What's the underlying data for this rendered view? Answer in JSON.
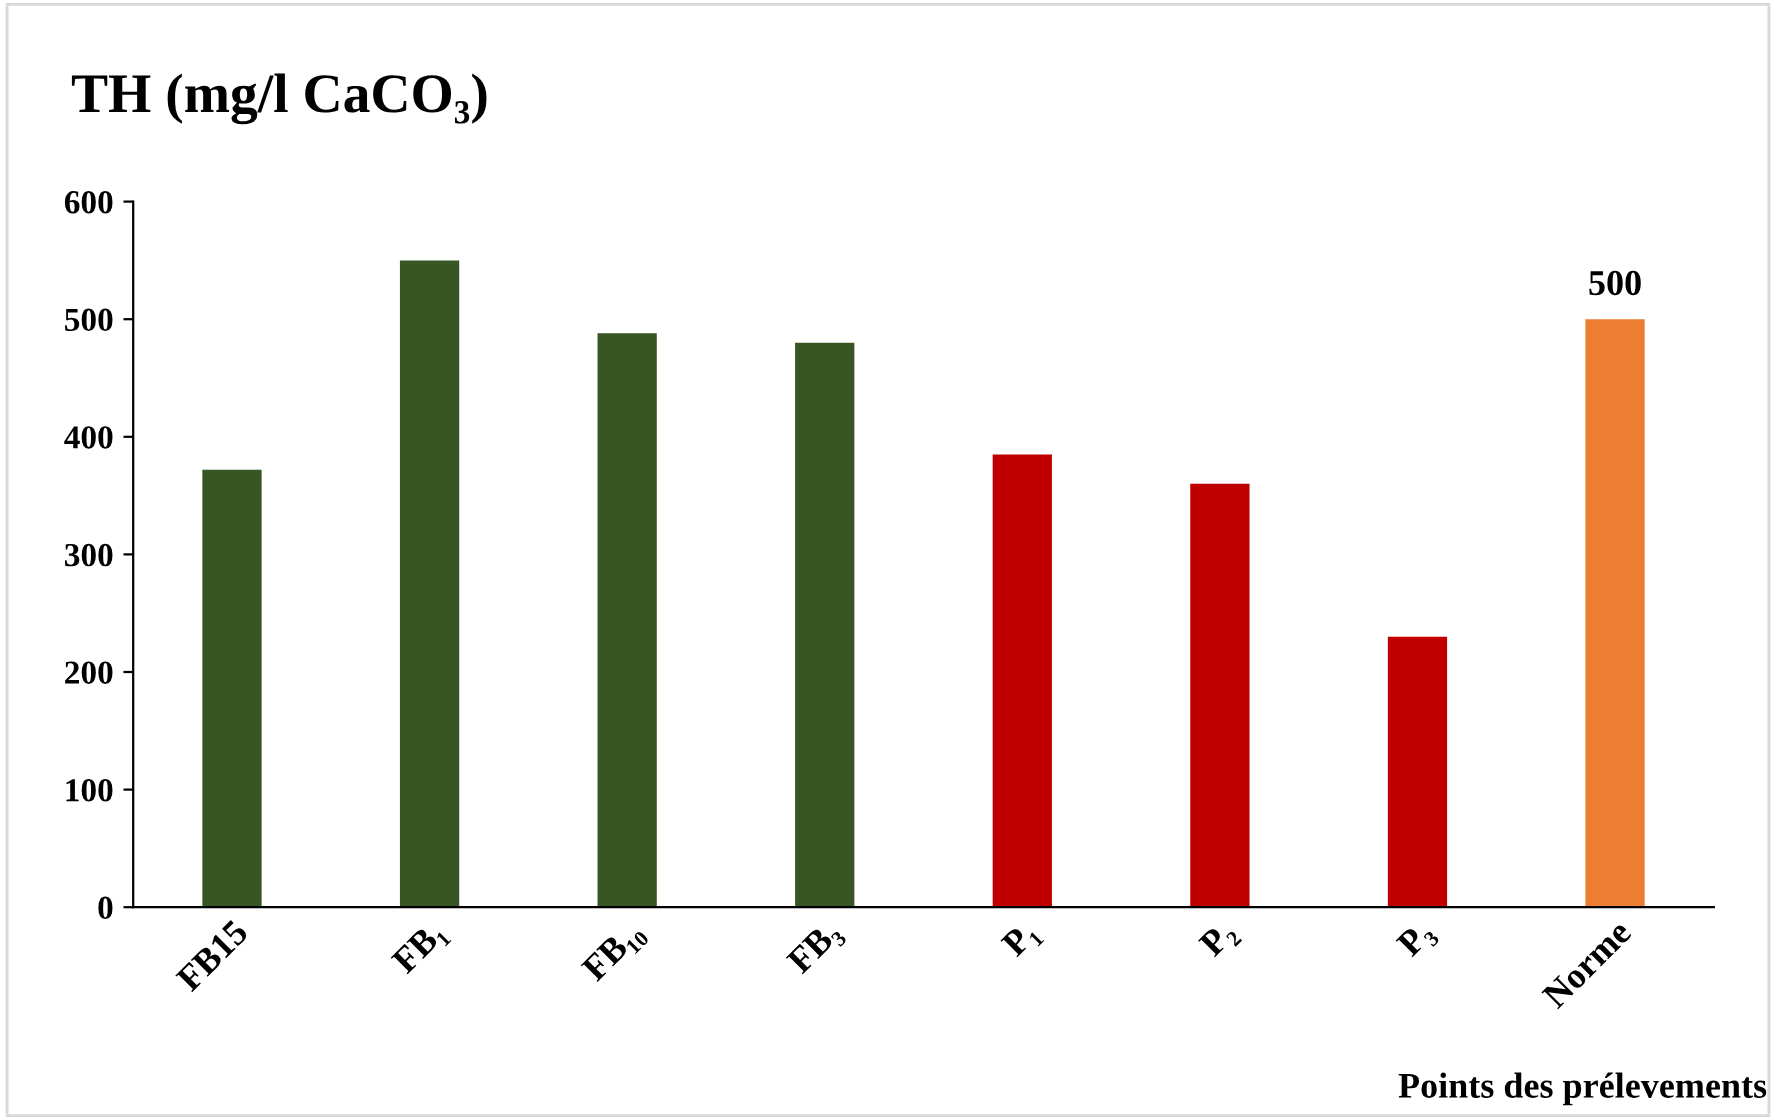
{
  "chart_data": {
    "type": "bar",
    "title": "TH (mg/l CaCO₃)",
    "xlabel": "Points des prélevements",
    "categories": [
      "FB15",
      "FB₁",
      "FB₁₀",
      "FB₃",
      "P₁",
      "P₂",
      "P₃",
      "Norme"
    ],
    "values": [
      372,
      550,
      488,
      480,
      385,
      360,
      230,
      500
    ],
    "colors": [
      "#375623",
      "#375623",
      "#375623",
      "#375623",
      "#c00000",
      "#c00000",
      "#c00000",
      "#ed7d31"
    ],
    "value_labels": [
      null,
      null,
      null,
      null,
      null,
      null,
      null,
      "500"
    ],
    "ylim": [
      0,
      600
    ],
    "yticks": [
      0,
      100,
      200,
      300,
      400,
      500,
      600
    ],
    "grid": false,
    "legend": false
  }
}
